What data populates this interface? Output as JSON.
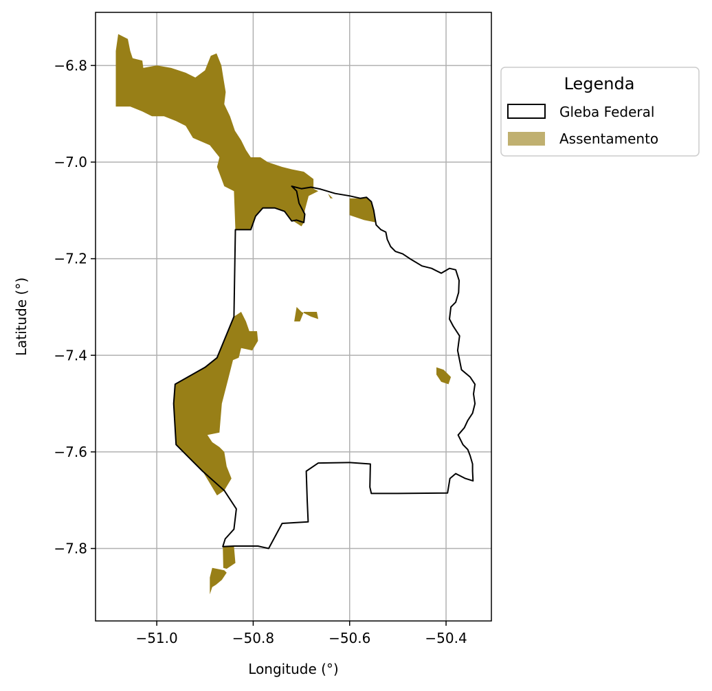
{
  "chart_data": {
    "type": "map",
    "xlabel": "Longitude (°)",
    "ylabel": "Latitude (°)",
    "xlim": [
      -51.127,
      -50.306
    ],
    "ylim": [
      -7.95,
      -6.69
    ],
    "x_ticks": [
      -51.0,
      -50.8,
      -50.6,
      -50.4
    ],
    "y_ticks": [
      -6.8,
      -7.0,
      -7.2,
      -7.4,
      -7.6,
      -7.8
    ],
    "x_tick_labels": [
      "−51.0",
      "−50.8",
      "−50.6",
      "−50.4"
    ],
    "y_tick_labels": [
      "−6.8",
      "−7.0",
      "−7.2",
      "−7.4",
      "−7.6",
      "−7.8"
    ],
    "grid": true,
    "legend": {
      "title": "Legenda",
      "position": "outside right, top",
      "entries": [
        {
          "label": "Gleba Federal",
          "style": "outline",
          "color": "#000000"
        },
        {
          "label": "Assentamento",
          "style": "fill",
          "color": "#c0b070"
        }
      ]
    },
    "colors": {
      "assentamento": "#987f17",
      "gleba_outline": "#000000",
      "grid": "#b0b0b0"
    },
    "gleba_federal": [
      [
        -50.837,
        -7.14
      ],
      [
        -50.805,
        -7.14
      ],
      [
        -50.795,
        -7.112
      ],
      [
        -50.78,
        -7.095
      ],
      [
        -50.755,
        -7.095
      ],
      [
        -50.735,
        -7.102
      ],
      [
        -50.72,
        -7.122
      ],
      [
        -50.71,
        -7.12
      ],
      [
        -50.695,
        -7.125
      ],
      [
        -50.693,
        -7.108
      ],
      [
        -50.705,
        -7.085
      ],
      [
        -50.71,
        -7.06
      ],
      [
        -50.72,
        -7.05
      ],
      [
        -50.7,
        -7.055
      ],
      [
        -50.68,
        -7.052
      ],
      [
        -50.66,
        -7.056
      ],
      [
        -50.63,
        -7.065
      ],
      [
        -50.6,
        -7.07
      ],
      [
        -50.578,
        -7.075
      ],
      [
        -50.565,
        -7.073
      ],
      [
        -50.555,
        -7.082
      ],
      [
        -50.55,
        -7.1
      ],
      [
        -50.545,
        -7.13
      ],
      [
        -50.535,
        -7.14
      ],
      [
        -50.525,
        -7.145
      ],
      [
        -50.522,
        -7.16
      ],
      [
        -50.515,
        -7.175
      ],
      [
        -50.505,
        -7.185
      ],
      [
        -50.49,
        -7.19
      ],
      [
        -50.475,
        -7.2
      ],
      [
        -50.45,
        -7.215
      ],
      [
        -50.43,
        -7.22
      ],
      [
        -50.41,
        -7.23
      ],
      [
        -50.393,
        -7.22
      ],
      [
        -50.38,
        -7.223
      ],
      [
        -50.373,
        -7.245
      ],
      [
        -50.374,
        -7.27
      ],
      [
        -50.38,
        -7.29
      ],
      [
        -50.39,
        -7.3
      ],
      [
        -50.393,
        -7.325
      ],
      [
        -50.385,
        -7.34
      ],
      [
        -50.372,
        -7.36
      ],
      [
        -50.376,
        -7.39
      ],
      [
        -50.372,
        -7.41
      ],
      [
        -50.368,
        -7.43
      ],
      [
        -50.35,
        -7.445
      ],
      [
        -50.34,
        -7.46
      ],
      [
        -50.343,
        -7.48
      ],
      [
        -50.34,
        -7.5
      ],
      [
        -50.345,
        -7.52
      ],
      [
        -50.355,
        -7.535
      ],
      [
        -50.362,
        -7.55
      ],
      [
        -50.375,
        -7.565
      ],
      [
        -50.365,
        -7.585
      ],
      [
        -50.355,
        -7.595
      ],
      [
        -50.35,
        -7.608
      ],
      [
        -50.345,
        -7.625
      ],
      [
        -50.345,
        -7.64
      ],
      [
        -50.344,
        -7.66
      ],
      [
        -50.36,
        -7.655
      ],
      [
        -50.38,
        -7.645
      ],
      [
        -50.392,
        -7.655
      ],
      [
        -50.397,
        -7.685
      ],
      [
        -50.5,
        -7.686
      ],
      [
        -50.555,
        -7.686
      ],
      [
        -50.558,
        -7.673
      ],
      [
        -50.557,
        -7.625
      ],
      [
        -50.6,
        -7.622
      ],
      [
        -50.665,
        -7.623
      ],
      [
        -50.69,
        -7.64
      ],
      [
        -50.688,
        -7.7
      ],
      [
        -50.686,
        -7.745
      ],
      [
        -50.74,
        -7.748
      ],
      [
        -50.768,
        -7.8
      ],
      [
        -50.79,
        -7.795
      ],
      [
        -50.84,
        -7.795
      ],
      [
        -50.863,
        -7.796
      ],
      [
        -50.858,
        -7.78
      ],
      [
        -50.84,
        -7.76
      ],
      [
        -50.835,
        -7.718
      ],
      [
        -50.86,
        -7.68
      ],
      [
        -50.905,
        -7.64
      ],
      [
        -50.935,
        -7.61
      ],
      [
        -50.96,
        -7.585
      ],
      [
        -50.965,
        -7.5
      ],
      [
        -50.962,
        -7.46
      ],
      [
        -50.9,
        -7.425
      ],
      [
        -50.875,
        -7.405
      ],
      [
        -50.84,
        -7.32
      ],
      [
        -50.838,
        -7.2
      ]
    ],
    "assentamentos": [
      [
        [
          -51.085,
          -6.77
        ],
        [
          -51.08,
          -6.735
        ],
        [
          -51.06,
          -6.745
        ],
        [
          -51.055,
          -6.77
        ],
        [
          -51.05,
          -6.785
        ],
        [
          -51.03,
          -6.79
        ],
        [
          -51.028,
          -6.805
        ],
        [
          -51.0,
          -6.8
        ],
        [
          -50.97,
          -6.805
        ],
        [
          -50.94,
          -6.815
        ],
        [
          -50.92,
          -6.825
        ],
        [
          -50.9,
          -6.81
        ],
        [
          -50.888,
          -6.78
        ],
        [
          -50.876,
          -6.775
        ],
        [
          -50.866,
          -6.8
        ],
        [
          -50.862,
          -6.825
        ],
        [
          -50.857,
          -6.855
        ],
        [
          -50.86,
          -6.88
        ],
        [
          -50.848,
          -6.905
        ],
        [
          -50.838,
          -6.935
        ],
        [
          -50.825,
          -6.955
        ],
        [
          -50.815,
          -6.975
        ],
        [
          -50.805,
          -6.99
        ],
        [
          -50.785,
          -6.99
        ],
        [
          -50.77,
          -7.0
        ],
        [
          -50.74,
          -7.01
        ],
        [
          -50.72,
          -7.015
        ],
        [
          -50.695,
          -7.02
        ],
        [
          -50.675,
          -7.035
        ],
        [
          -50.675,
          -7.055
        ],
        [
          -50.665,
          -7.06
        ],
        [
          -50.685,
          -7.07
        ],
        [
          -50.693,
          -7.1
        ],
        [
          -50.695,
          -7.125
        ],
        [
          -50.7,
          -7.133
        ],
        [
          -50.72,
          -7.12
        ],
        [
          -50.735,
          -7.102
        ],
        [
          -50.755,
          -7.095
        ],
        [
          -50.78,
          -7.095
        ],
        [
          -50.795,
          -7.112
        ],
        [
          -50.805,
          -7.14
        ],
        [
          -50.837,
          -7.14
        ],
        [
          -50.84,
          -7.06
        ],
        [
          -50.86,
          -7.05
        ],
        [
          -50.875,
          -7.01
        ],
        [
          -50.87,
          -6.99
        ],
        [
          -50.89,
          -6.965
        ],
        [
          -50.925,
          -6.95
        ],
        [
          -50.94,
          -6.925
        ],
        [
          -50.96,
          -6.915
        ],
        [
          -50.985,
          -6.905
        ],
        [
          -51.01,
          -6.905
        ],
        [
          -51.03,
          -6.895
        ],
        [
          -51.055,
          -6.885
        ],
        [
          -51.085,
          -6.885
        ]
      ],
      [
        [
          -50.6,
          -7.075
        ],
        [
          -50.578,
          -7.075
        ],
        [
          -50.565,
          -7.073
        ],
        [
          -50.555,
          -7.082
        ],
        [
          -50.55,
          -7.1
        ],
        [
          -50.545,
          -7.125
        ],
        [
          -50.57,
          -7.12
        ],
        [
          -50.6,
          -7.11
        ],
        [
          -50.6,
          -7.09
        ]
      ],
      [
        [
          -50.645,
          -7.065
        ],
        [
          -50.64,
          -7.07
        ],
        [
          -50.635,
          -7.075
        ],
        [
          -50.64,
          -7.075
        ]
      ],
      [
        [
          -50.84,
          -7.32
        ],
        [
          -50.825,
          -7.31
        ],
        [
          -50.815,
          -7.33
        ],
        [
          -50.808,
          -7.35
        ],
        [
          -50.792,
          -7.35
        ],
        [
          -50.79,
          -7.37
        ],
        [
          -50.802,
          -7.39
        ],
        [
          -50.825,
          -7.385
        ],
        [
          -50.83,
          -7.405
        ],
        [
          -50.842,
          -7.41
        ],
        [
          -50.852,
          -7.45
        ],
        [
          -50.865,
          -7.5
        ],
        [
          -50.87,
          -7.56
        ],
        [
          -50.895,
          -7.565
        ],
        [
          -50.885,
          -7.58
        ],
        [
          -50.87,
          -7.59
        ],
        [
          -50.86,
          -7.6
        ],
        [
          -50.855,
          -7.63
        ],
        [
          -50.845,
          -7.655
        ],
        [
          -50.86,
          -7.68
        ],
        [
          -50.875,
          -7.69
        ],
        [
          -50.905,
          -7.64
        ],
        [
          -50.935,
          -7.61
        ],
        [
          -50.96,
          -7.585
        ],
        [
          -50.965,
          -7.5
        ],
        [
          -50.962,
          -7.46
        ],
        [
          -50.9,
          -7.425
        ],
        [
          -50.875,
          -7.405
        ]
      ],
      [
        [
          -50.71,
          -7.3
        ],
        [
          -50.7,
          -7.31
        ],
        [
          -50.68,
          -7.32
        ],
        [
          -50.665,
          -7.325
        ],
        [
          -50.668,
          -7.31
        ],
        [
          -50.695,
          -7.31
        ],
        [
          -50.703,
          -7.33
        ],
        [
          -50.715,
          -7.33
        ]
      ],
      [
        [
          -50.42,
          -7.425
        ],
        [
          -50.405,
          -7.43
        ],
        [
          -50.39,
          -7.445
        ],
        [
          -50.395,
          -7.46
        ],
        [
          -50.41,
          -7.455
        ],
        [
          -50.42,
          -7.44
        ]
      ],
      [
        [
          -50.863,
          -7.796
        ],
        [
          -50.84,
          -7.795
        ],
        [
          -50.837,
          -7.83
        ],
        [
          -50.855,
          -7.842
        ],
        [
          -50.862,
          -7.84
        ]
      ],
      [
        [
          -50.885,
          -7.84
        ],
        [
          -50.86,
          -7.845
        ],
        [
          -50.855,
          -7.85
        ],
        [
          -50.865,
          -7.865
        ],
        [
          -50.877,
          -7.875
        ],
        [
          -50.885,
          -7.88
        ],
        [
          -50.89,
          -7.895
        ],
        [
          -50.89,
          -7.86
        ]
      ]
    ]
  }
}
